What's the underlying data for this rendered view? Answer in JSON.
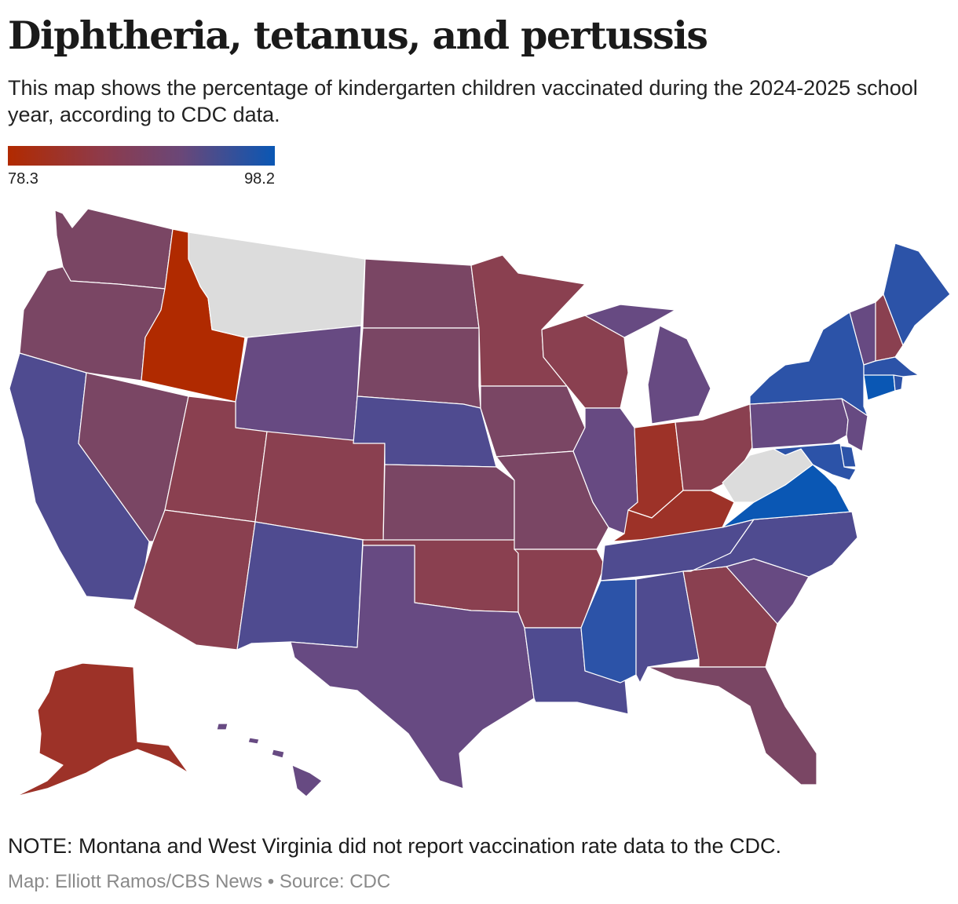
{
  "title": "Diphtheria, tetanus, and pertussis",
  "subtitle": "This map shows the percentage of kindergarten children vaccinated during the 2024-2025 school year, according to CDC data.",
  "legend": {
    "min_label": "78.3",
    "max_label": "98.2",
    "low_color": "#b12a00",
    "high_color": "#0a57b4"
  },
  "colors": {
    "no_data": "#dcdcdc",
    "blue": "#2c53a8",
    "blue_strong": "#0a57b4",
    "blue_purple": "#4f4b90",
    "purple": "#674a82",
    "purple_red": "#7a4664",
    "red_purple": "#8a4050",
    "red": "#9d3228",
    "red_strong": "#b02a00"
  },
  "states": [
    {
      "name": "Washington",
      "color": "purple_red"
    },
    {
      "name": "Oregon",
      "color": "purple_red"
    },
    {
      "name": "California",
      "color": "blue_purple"
    },
    {
      "name": "Idaho",
      "color": "red_strong"
    },
    {
      "name": "Nevada",
      "color": "purple_red"
    },
    {
      "name": "Montana",
      "color": "no_data"
    },
    {
      "name": "Wyoming",
      "color": "purple"
    },
    {
      "name": "Utah",
      "color": "red_purple"
    },
    {
      "name": "Arizona",
      "color": "red_purple"
    },
    {
      "name": "Colorado",
      "color": "red_purple"
    },
    {
      "name": "New Mexico",
      "color": "blue_purple"
    },
    {
      "name": "North Dakota",
      "color": "purple_red"
    },
    {
      "name": "South Dakota",
      "color": "purple_red"
    },
    {
      "name": "Nebraska",
      "color": "blue_purple"
    },
    {
      "name": "Kansas",
      "color": "purple_red"
    },
    {
      "name": "Oklahoma",
      "color": "red_purple"
    },
    {
      "name": "Texas",
      "color": "purple"
    },
    {
      "name": "Minnesota",
      "color": "red_purple"
    },
    {
      "name": "Iowa",
      "color": "purple_red"
    },
    {
      "name": "Missouri",
      "color": "purple_red"
    },
    {
      "name": "Arkansas",
      "color": "red_purple"
    },
    {
      "name": "Louisiana",
      "color": "blue_purple"
    },
    {
      "name": "Wisconsin",
      "color": "red_purple"
    },
    {
      "name": "Illinois",
      "color": "purple"
    },
    {
      "name": "Michigan",
      "color": "purple"
    },
    {
      "name": "Indiana",
      "color": "red"
    },
    {
      "name": "Ohio",
      "color": "red_purple"
    },
    {
      "name": "Kentucky",
      "color": "red"
    },
    {
      "name": "Tennessee",
      "color": "blue_purple"
    },
    {
      "name": "Mississippi",
      "color": "blue"
    },
    {
      "name": "Alabama",
      "color": "blue_purple"
    },
    {
      "name": "Georgia",
      "color": "red_purple"
    },
    {
      "name": "Florida",
      "color": "purple_red"
    },
    {
      "name": "South Carolina",
      "color": "purple"
    },
    {
      "name": "North Carolina",
      "color": "blue_purple"
    },
    {
      "name": "Virginia",
      "color": "blue_strong"
    },
    {
      "name": "West Virginia",
      "color": "no_data"
    },
    {
      "name": "Pennsylvania",
      "color": "purple"
    },
    {
      "name": "New York",
      "color": "blue"
    },
    {
      "name": "Maine",
      "color": "blue"
    },
    {
      "name": "Vermont",
      "color": "purple"
    },
    {
      "name": "New Hampshire",
      "color": "red_purple"
    },
    {
      "name": "Massachusetts",
      "color": "blue"
    },
    {
      "name": "Connecticut",
      "color": "blue_strong"
    },
    {
      "name": "Rhode Island",
      "color": "blue"
    },
    {
      "name": "New Jersey",
      "color": "purple"
    },
    {
      "name": "Delaware",
      "color": "blue"
    },
    {
      "name": "Maryland",
      "color": "blue"
    },
    {
      "name": "Alaska",
      "color": "red"
    },
    {
      "name": "Hawaii",
      "color": "purple"
    }
  ],
  "note": "NOTE: Montana and West Virginia did not report vaccination rate data to the CDC.",
  "credit": "Map: Elliott Ramos/CBS News • Source: CDC"
}
